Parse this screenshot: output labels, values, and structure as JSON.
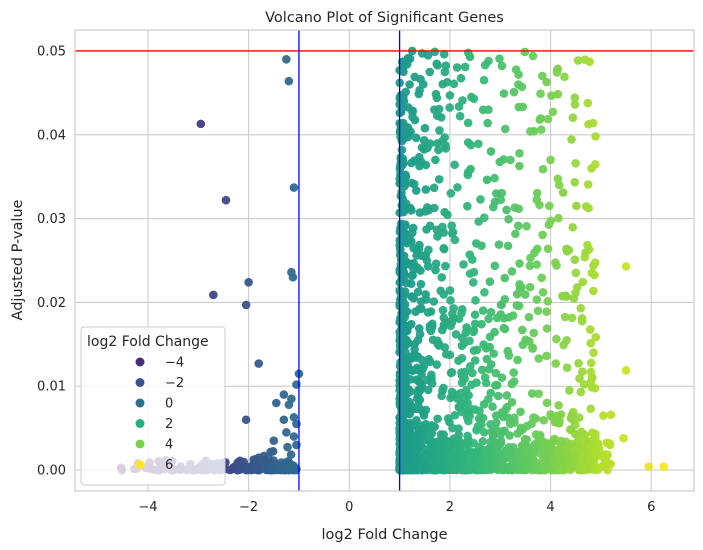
{
  "chart_data": {
    "type": "scatter",
    "title": "Volcano Plot of Significant Genes",
    "xlabel": "log2 Fold Change",
    "ylabel": "Adjusted P-value",
    "xlim": [
      -5.45,
      6.85
    ],
    "ylim": [
      -0.0025,
      0.0525
    ],
    "x_ticks": [
      -4,
      -2,
      0,
      2,
      4,
      6
    ],
    "x_tick_labels": [
      "−4",
      "−2",
      "0",
      "2",
      "4",
      "6"
    ],
    "y_ticks": [
      0.0,
      0.01,
      0.02,
      0.03,
      0.04,
      0.05
    ],
    "y_tick_labels": [
      "0.00",
      "0.01",
      "0.02",
      "0.03",
      "0.04",
      "0.05"
    ],
    "grid": true,
    "reference_lines": [
      {
        "orientation": "horizontal",
        "value": 0.05,
        "color": "#ff0000"
      },
      {
        "orientation": "vertical",
        "value": -1,
        "color": "#0000ff"
      },
      {
        "orientation": "vertical",
        "value": 1,
        "color": "#0000ff"
      }
    ],
    "colormap": "viridis",
    "color_range": [
      -5,
      6.3
    ],
    "legend": {
      "title": "log2 Fold Change",
      "placement": "lower-left",
      "entries": [
        {
          "label": "−4",
          "value": -4,
          "color": "#472c7a"
        },
        {
          "label": "−2",
          "value": -2,
          "color": "#3b528b"
        },
        {
          "label": "0",
          "value": 0,
          "color": "#2c728e"
        },
        {
          "label": "2",
          "value": 2,
          "color": "#28ae80"
        },
        {
          "label": "4",
          "value": 4,
          "color": "#7ad151"
        },
        {
          "label": "6",
          "value": 6,
          "color": "#fde725"
        }
      ]
    },
    "points": [
      [
        -2.95,
        0.0413
      ],
      [
        -2.45,
        0.0322
      ],
      [
        -2.7,
        0.0209
      ],
      [
        -2.0,
        0.0224
      ],
      [
        -2.05,
        0.0197
      ],
      [
        -1.8,
        0.0127
      ],
      [
        -2.05,
        0.006
      ],
      [
        -1.25,
        0.049
      ],
      [
        -1.2,
        0.0464
      ],
      [
        -1.1,
        0.0337
      ],
      [
        -1.15,
        0.0236
      ],
      [
        -1.12,
        0.023
      ],
      [
        -1.0,
        0.0115
      ],
      [
        -1.05,
        0.0102
      ],
      [
        -1.15,
        0.0085
      ],
      [
        -1.3,
        0.009
      ],
      [
        -1.2,
        0.0078
      ],
      [
        -1.45,
        0.008
      ],
      [
        -1.1,
        0.0063
      ],
      [
        -1.3,
        0.006
      ],
      [
        -1.05,
        0.0055
      ],
      [
        -1.25,
        0.0045
      ],
      [
        -1.1,
        0.004
      ],
      [
        -1.5,
        0.0035
      ],
      [
        -1.05,
        0.003
      ],
      [
        1.25,
        0.05
      ],
      [
        1.45,
        0.0497
      ],
      [
        1.7,
        0.0499
      ],
      [
        1.15,
        0.0484
      ],
      [
        1.6,
        0.0475
      ],
      [
        1.3,
        0.0469
      ],
      [
        1.9,
        0.0475
      ],
      [
        2.4,
        0.0493
      ],
      [
        2.7,
        0.0483
      ],
      [
        3.65,
        0.0494
      ],
      [
        3.8,
        0.0449
      ],
      [
        2.0,
        0.0447
      ],
      [
        2.25,
        0.0441
      ],
      [
        2.75,
        0.0414
      ],
      [
        3.1,
        0.0407
      ],
      [
        3.6,
        0.0404
      ],
      [
        4.0,
        0.037
      ],
      [
        3.85,
        0.0359
      ],
      [
        4.25,
        0.0331
      ],
      [
        5.5,
        0.0243
      ],
      [
        4.3,
        0.0208
      ],
      [
        4.6,
        0.0193
      ],
      [
        3.75,
        0.019
      ],
      [
        3.95,
        0.0264
      ],
      [
        3.6,
        0.0253
      ],
      [
        5.5,
        0.0119
      ],
      [
        4.8,
        0.0117
      ],
      [
        4.8,
        0.0105
      ],
      [
        5.05,
        0.0065
      ],
      [
        5.2,
        0.0066
      ],
      [
        4.6,
        0.0093
      ],
      [
        4.45,
        0.0069
      ],
      [
        5.45,
        0.0038
      ],
      [
        5.95,
        0.0004
      ],
      [
        6.25,
        0.0004
      ],
      [
        4.9,
        0.0022
      ],
      [
        5.05,
        0.0015
      ],
      [
        4.7,
        0.0034
      ],
      [
        4.3,
        0.0025
      ],
      [
        4.15,
        0.0012
      ]
    ]
  }
}
